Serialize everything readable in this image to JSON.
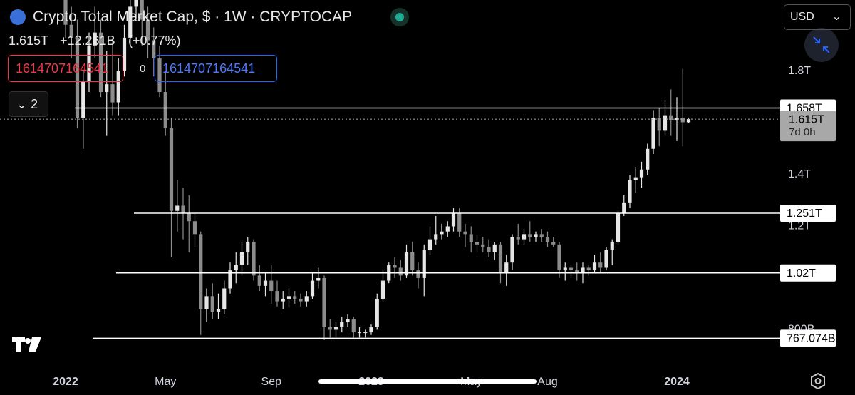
{
  "chart_data": {
    "type": "candlestick",
    "title": "Crypto Total Market Cap, $ · 1W · CRYPTOCAP",
    "categories": [
      "2022",
      null,
      null,
      null,
      null,
      null,
      null,
      null,
      null,
      null,
      null,
      null,
      null,
      null,
      null,
      null,
      null,
      "May",
      null,
      null,
      null,
      null,
      null,
      null,
      null,
      null,
      null,
      null,
      null,
      null,
      null,
      null,
      null,
      null,
      null,
      "Sep",
      null,
      null,
      null,
      null,
      null,
      null,
      null,
      null,
      null,
      null,
      null,
      null,
      null,
      null,
      null,
      null,
      "2023",
      null,
      null,
      null,
      null,
      null,
      null,
      null,
      null,
      null,
      null,
      null,
      null,
      null,
      null,
      null,
      null,
      "May",
      null,
      null,
      null,
      null,
      null,
      null,
      null,
      null,
      null,
      null,
      null,
      null,
      "Aug",
      null,
      null,
      null,
      null,
      null,
      null,
      null,
      null,
      null,
      null,
      null,
      null,
      null,
      null,
      null,
      null,
      null,
      null,
      null,
      null,
      null,
      "2024",
      null,
      null
    ],
    "open": [
      2200000000000.0,
      1980000000000.0,
      1930000000000.0,
      1620000000000.0,
      1760000000000.0,
      1900000000000.0,
      1950000000000.0,
      1720000000000.0,
      1750000000000.0,
      1680000000000.0,
      1800000000000.0,
      1930000000000.0,
      2050000000000.0,
      2150000000000.0,
      2000000000000.0,
      1920000000000.0,
      1850000000000.0,
      1720000000000.0,
      1580000000000.0,
      1260000000000.0,
      1280000000000.0,
      1250000000000.0,
      1220000000000.0,
      1170000000000.0,
      880000000000.0,
      930000000000.0,
      870000000000.0,
      880000000000.0,
      960000000000.0,
      1030000000000.0,
      1050000000000.0,
      1100000000000.0,
      1140000000000.0,
      1010000000000.0,
      970000000000.0,
      990000000000.0,
      950000000000.0,
      910000000000.0,
      920000000000.0,
      930000000000.0,
      920000000000.0,
      910000000000.0,
      930000000000.0,
      990000000000.0,
      1000000000000.0,
      810000000000.0,
      800000000000.0,
      810000000000.0,
      830000000000.0,
      840000000000.0,
      790000000000.0,
      790000000000.0,
      790000000000.0,
      810000000000.0,
      920000000000.0,
      990000000000.0,
      1050000000000.0,
      1040000000000.0,
      1010000000000.0,
      1100000000000.0,
      1030000000000.0,
      1000000000000.0,
      1110000000000.0,
      1150000000000.0,
      1170000000000.0,
      1180000000000.0,
      1200000000000.0,
      1250000000000.0,
      1180000000000.0,
      1170000000000.0,
      1140000000000.0,
      1130000000000.0,
      1120000000000.0,
      1100000000000.0,
      1130000000000.0,
      1020000000000.0,
      1060000000000.0,
      1160000000000.0,
      1150000000000.0,
      1170000000000.0,
      1160000000000.0,
      1170000000000.0,
      1160000000000.0,
      1140000000000.0,
      1130000000000.0,
      1030000000000.0,
      1040000000000.0,
      1030000000000.0,
      1020000000000.0,
      1040000000000.0,
      1030000000000.0,
      1060000000000.0,
      1040000000000.0,
      1110000000000.0,
      1140000000000.0,
      1250000000000.0,
      1290000000000.0,
      1380000000000.0,
      1390000000000.0,
      1420000000000.0,
      1500000000000.0,
      1620000000000.0,
      1570000000000.0,
      1630000000000.0,
      1610000000000.0,
      1620000000000.0,
      1603000000000.0
    ],
    "high": [
      2280000000000.0,
      2050000000000.0,
      2000000000000.0,
      1800000000000.0,
      1950000000000.0,
      2050000000000.0,
      2000000000000.0,
      1880000000000.0,
      1930000000000.0,
      1850000000000.0,
      1980000000000.0,
      2100000000000.0,
      2200000000000.0,
      2180000000000.0,
      2050000000000.0,
      1970000000000.0,
      1900000000000.0,
      1800000000000.0,
      1620000000000.0,
      1380000000000.0,
      1350000000000.0,
      1320000000000.0,
      1250000000000.0,
      1180000000000.0,
      960000000000.0,
      980000000000.0,
      940000000000.0,
      990000000000.0,
      1060000000000.0,
      1100000000000.0,
      1140000000000.0,
      1160000000000.0,
      1150000000000.0,
      1050000000000.0,
      1020000000000.0,
      1050000000000.0,
      990000000000.0,
      950000000000.0,
      960000000000.0,
      950000000000.0,
      940000000000.0,
      950000000000.0,
      1020000000000.0,
      1040000000000.0,
      1010000000000.0,
      840000000000.0,
      830000000000.0,
      850000000000.0,
      860000000000.0,
      850000000000.0,
      810000000000.0,
      800000000000.0,
      820000000000.0,
      940000000000.0,
      1030000000000.0,
      1060000000000.0,
      1080000000000.0,
      1070000000000.0,
      1130000000000.0,
      1140000000000.0,
      1060000000000.0,
      1130000000000.0,
      1200000000000.0,
      1240000000000.0,
      1210000000000.0,
      1220000000000.0,
      1270000000000.0,
      1270000000000.0,
      1210000000000.0,
      1200000000000.0,
      1170000000000.0,
      1160000000000.0,
      1150000000000.0,
      1140000000000.0,
      1140000000000.0,
      1090000000000.0,
      1170000000000.0,
      1210000000000.0,
      1190000000000.0,
      1220000000000.0,
      1180000000000.0,
      1190000000000.0,
      1180000000000.0,
      1160000000000.0,
      1140000000000.0,
      1060000000000.0,
      1050000000000.0,
      1060000000000.0,
      1060000000000.0,
      1050000000000.0,
      1090000000000.0,
      1100000000000.0,
      1120000000000.0,
      1150000000000.0,
      1260000000000.0,
      1320000000000.0,
      1400000000000.0,
      1430000000000.0,
      1450000000000.0,
      1520000000000.0,
      1650000000000.0,
      1660000000000.0,
      1690000000000.0,
      1730000000000.0,
      1700000000000.0,
      1810000000000.0,
      1620000000000.0
    ],
    "low": [
      1930000000000.0,
      1850000000000.0,
      1580000000000.0,
      1500000000000.0,
      1720000000000.0,
      1850000000000.0,
      1700000000000.0,
      1550000000000.0,
      1630000000000.0,
      1630000000000.0,
      1780000000000.0,
      1900000000000.0,
      2000000000000.0,
      1900000000000.0,
      1850000000000.0,
      1780000000000.0,
      1700000000000.0,
      1550000000000.0,
      1080000000000.0,
      1180000000000.0,
      1150000000000.0,
      1100000000000.0,
      1120000000000.0,
      780000000000.0,
      830000000000.0,
      840000000000.0,
      840000000000.0,
      860000000000.0,
      940000000000.0,
      980000000000.0,
      1010000000000.0,
      1050000000000.0,
      990000000000.0,
      950000000000.0,
      930000000000.0,
      900000000000.0,
      890000000000.0,
      880000000000.0,
      890000000000.0,
      900000000000.0,
      890000000000.0,
      890000000000.0,
      920000000000.0,
      960000000000.0,
      760000000000.0,
      770000000000.0,
      770000000000.0,
      790000000000.0,
      810000000000.0,
      770000000000.0,
      770000000000.0,
      770000000000.0,
      780000000000.0,
      800000000000.0,
      910000000000.0,
      980000000000.0,
      1000000000000.0,
      990000000000.0,
      1000000000000.0,
      1010000000000.0,
      960000000000.0,
      930000000000.0,
      1090000000000.0,
      1130000000000.0,
      1150000000000.0,
      1160000000000.0,
      1180000000000.0,
      1160000000000.0,
      1120000000000.0,
      1100000000000.0,
      1100000000000.0,
      1100000000000.0,
      1080000000000.0,
      1070000000000.0,
      980000000000.0,
      970000000000.0,
      1030000000000.0,
      1130000000000.0,
      1130000000000.0,
      1140000000000.0,
      1140000000000.0,
      1140000000000.0,
      1120000000000.0,
      1120000000000.0,
      1000000000000.0,
      990000000000.0,
      1000000000000.0,
      990000000000.0,
      980000000000.0,
      1010000000000.0,
      1020000000000.0,
      1020000000000.0,
      1030000000000.0,
      1050000000000.0,
      1130000000000.0,
      1240000000000.0,
      1270000000000.0,
      1330000000000.0,
      1350000000000.0,
      1400000000000.0,
      1480000000000.0,
      1510000000000.0,
      1550000000000.0,
      1550000000000.0,
      1530000000000.0,
      1510000000000.0,
      1600000000000.0
    ],
    "close": [
      1980000000000.0,
      1930000000000.0,
      1620000000000.0,
      1760000000000.0,
      1900000000000.0,
      1950000000000.0,
      1720000000000.0,
      1750000000000.0,
      1680000000000.0,
      1800000000000.0,
      1930000000000.0,
      2050000000000.0,
      2150000000000.0,
      2000000000000.0,
      1920000000000.0,
      1850000000000.0,
      1720000000000.0,
      1580000000000.0,
      1260000000000.0,
      1280000000000.0,
      1250000000000.0,
      1220000000000.0,
      1170000000000.0,
      880000000000.0,
      930000000000.0,
      870000000000.0,
      880000000000.0,
      960000000000.0,
      1030000000000.0,
      1050000000000.0,
      1100000000000.0,
      1140000000000.0,
      1010000000000.0,
      970000000000.0,
      990000000000.0,
      950000000000.0,
      910000000000.0,
      920000000000.0,
      930000000000.0,
      920000000000.0,
      910000000000.0,
      930000000000.0,
      990000000000.0,
      1000000000000.0,
      810000000000.0,
      800000000000.0,
      810000000000.0,
      830000000000.0,
      840000000000.0,
      790000000000.0,
      790000000000.0,
      790000000000.0,
      810000000000.0,
      920000000000.0,
      990000000000.0,
      1050000000000.0,
      1040000000000.0,
      1010000000000.0,
      1100000000000.0,
      1030000000000.0,
      1000000000000.0,
      1110000000000.0,
      1150000000000.0,
      1170000000000.0,
      1180000000000.0,
      1200000000000.0,
      1250000000000.0,
      1180000000000.0,
      1170000000000.0,
      1140000000000.0,
      1130000000000.0,
      1120000000000.0,
      1100000000000.0,
      1130000000000.0,
      1020000000000.0,
      1060000000000.0,
      1160000000000.0,
      1150000000000.0,
      1170000000000.0,
      1160000000000.0,
      1170000000000.0,
      1160000000000.0,
      1140000000000.0,
      1130000000000.0,
      1030000000000.0,
      1040000000000.0,
      1030000000000.0,
      1020000000000.0,
      1040000000000.0,
      1030000000000.0,
      1060000000000.0,
      1040000000000.0,
      1110000000000.0,
      1140000000000.0,
      1250000000000.0,
      1290000000000.0,
      1380000000000.0,
      1390000000000.0,
      1420000000000.0,
      1500000000000.0,
      1620000000000.0,
      1570000000000.0,
      1630000000000.0,
      1610000000000.0,
      1620000000000.0,
      1603000000000.0,
      1615000000000.0
    ],
    "up_color": "#e6e6e6",
    "down_color": "#8c8c8c",
    "ylim": [
      655000000000.0,
      2076000000000.0
    ],
    "yticks": [
      {
        "value": 1800000000000.0,
        "label": "1.8T"
      },
      {
        "value": 1400000000000.0,
        "label": "1.4T"
      },
      {
        "value": 1200000000000.0,
        "label": "1.2T"
      },
      {
        "value": 800000000000.0,
        "label": "800B"
      }
    ],
    "levels": [
      {
        "value": 1658000000000.0,
        "label": "1.658T"
      },
      {
        "value": 1251000000000.0,
        "label": "1.251T"
      },
      {
        "value": 1020000000000.0,
        "label": "1.02T"
      },
      {
        "value": 767074000000.0,
        "label": "767.074B"
      }
    ],
    "last_price": {
      "value": 1615000000000.0,
      "label": "1.615T"
    },
    "countdown": "7d 0h"
  },
  "ui": {
    "header_price": "1.615T",
    "change": "+12.261B",
    "change_pct": "(+0.77%)",
    "red_box": "1614707164541",
    "zero": "0",
    "blue_box": "1614707164541",
    "indicator_count": "2",
    "currency": "USD"
  }
}
